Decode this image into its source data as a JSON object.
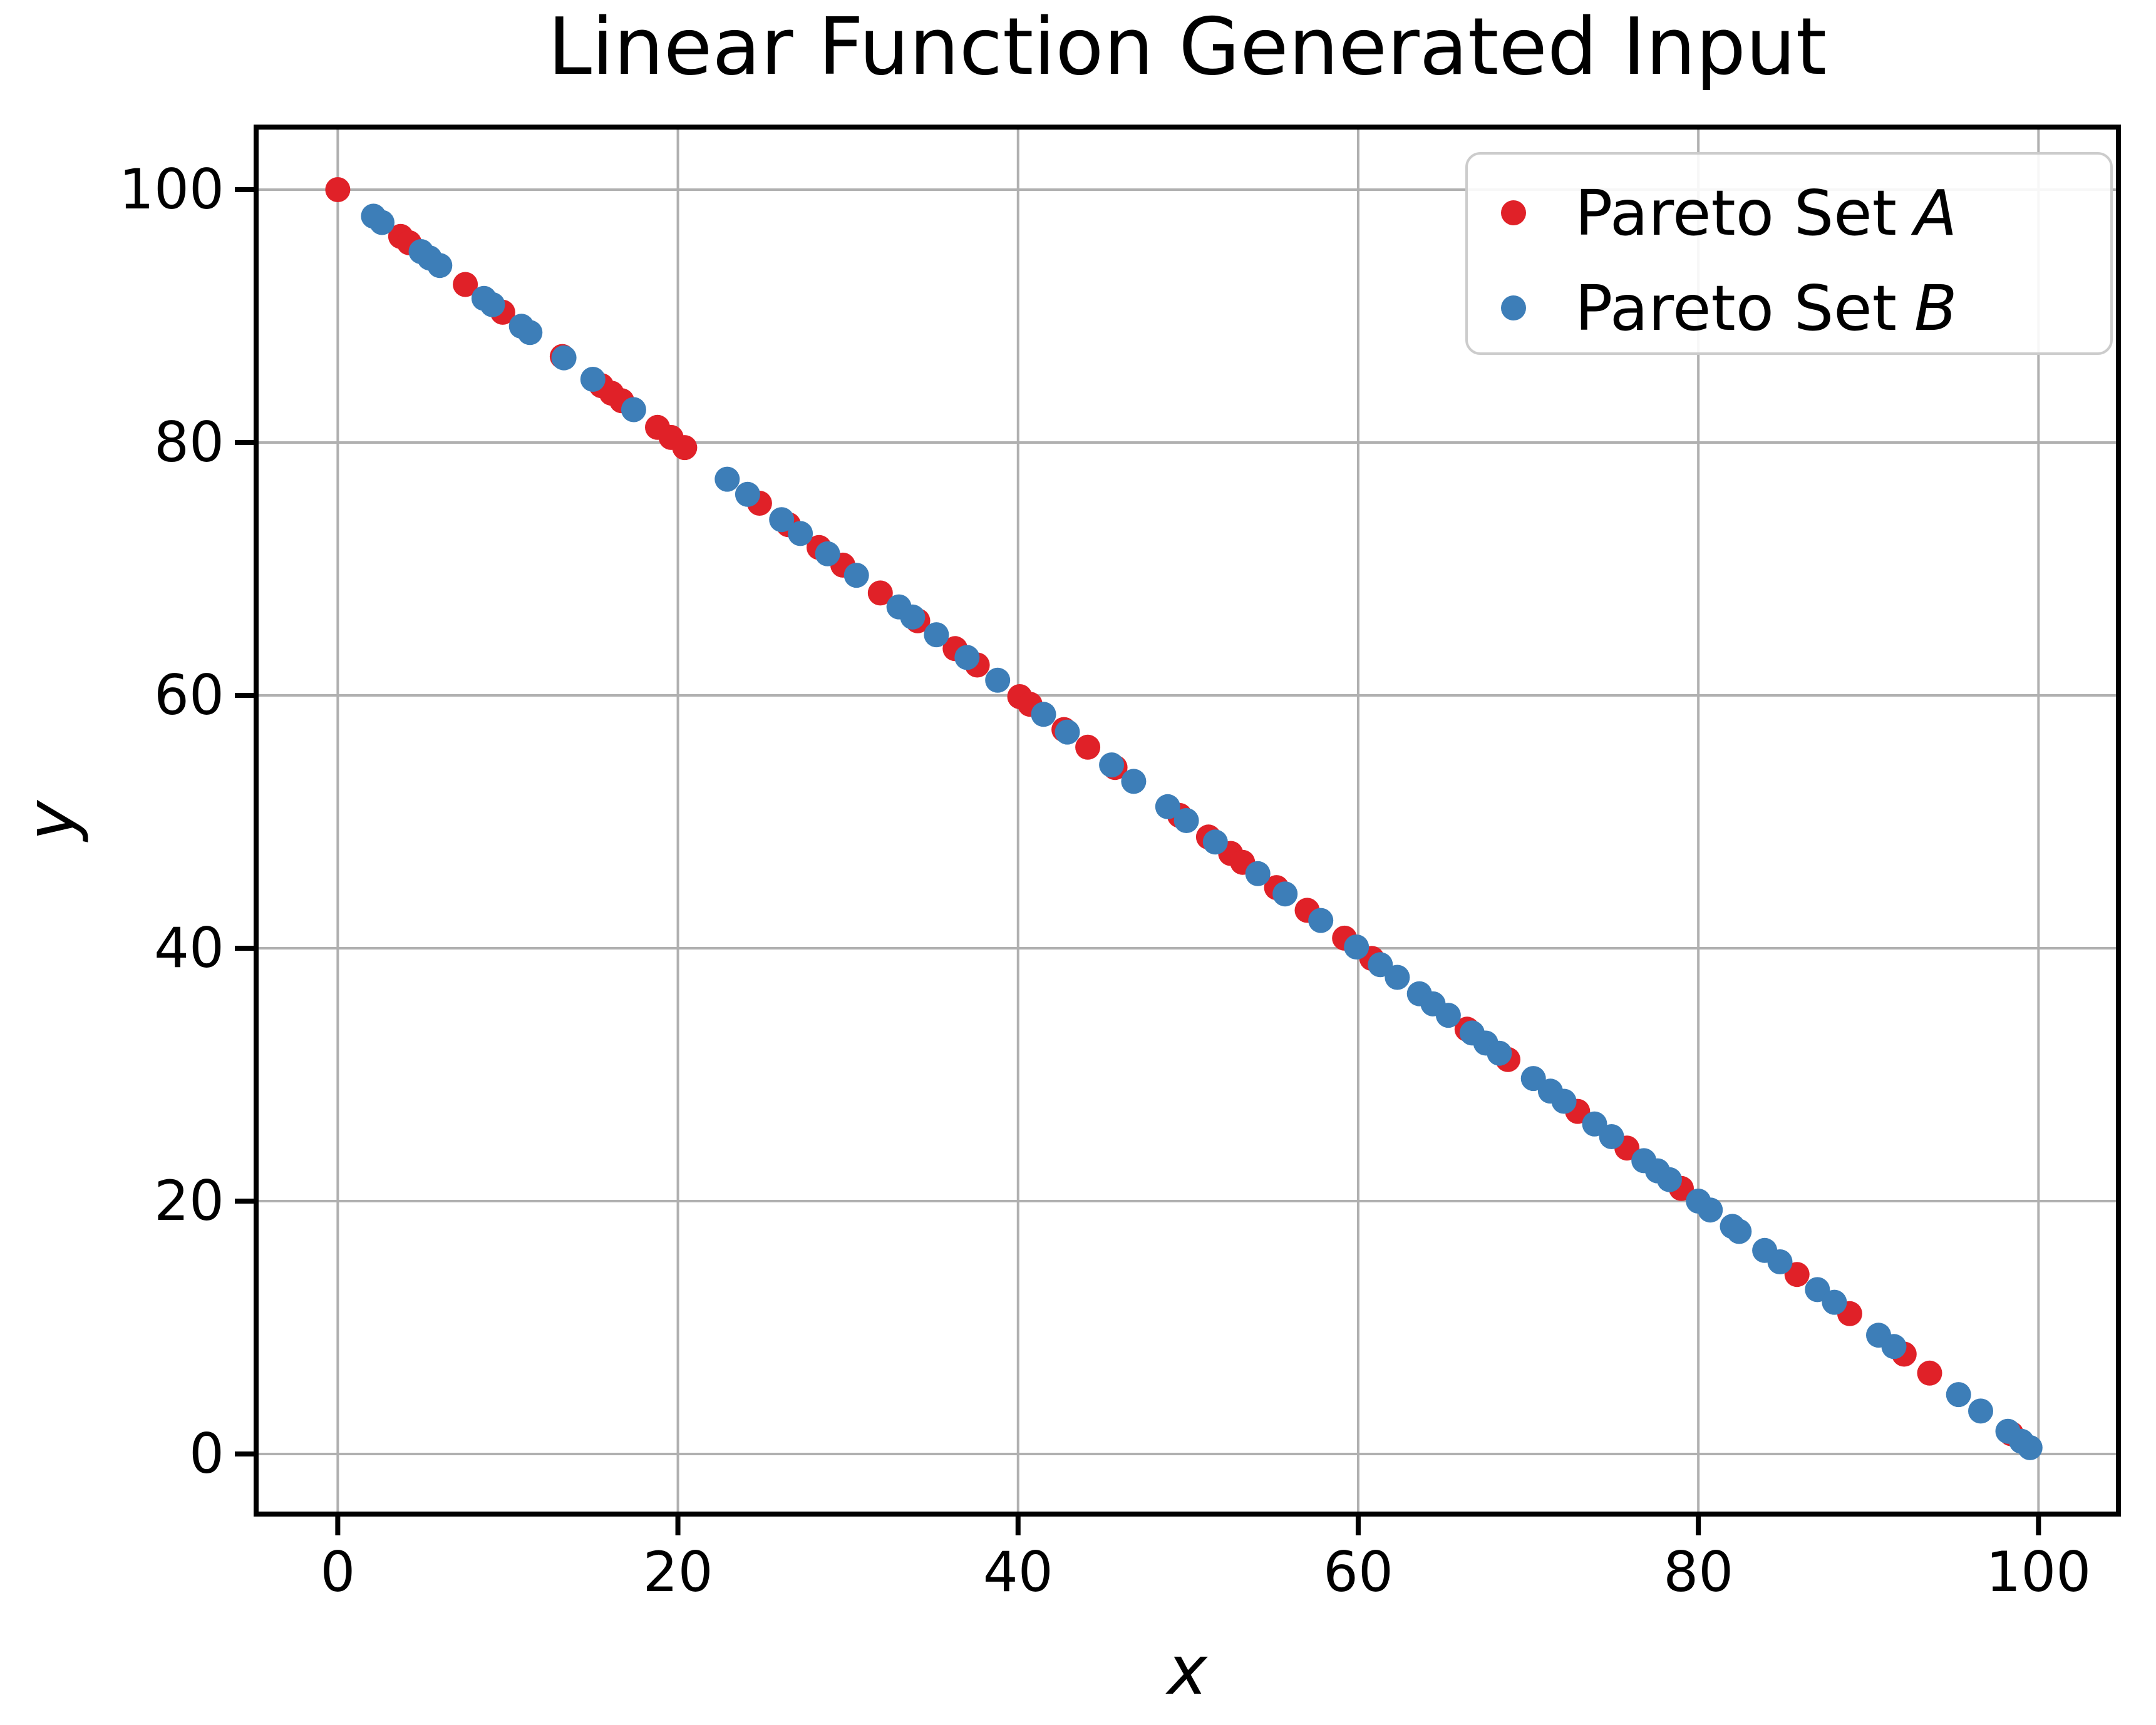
{
  "title": "Linear Function Generated Input",
  "axes": {
    "xlabel": "x",
    "ylabel": "y",
    "xticks": [
      0,
      20,
      40,
      60,
      80,
      100
    ],
    "yticks": [
      0,
      20,
      40,
      60,
      80,
      100
    ],
    "xlim": [
      -4.8,
      104.7
    ],
    "ylim": [
      -4.75,
      104.95
    ],
    "grid": true,
    "grid_color": "#b0b0b0",
    "spine_color": "#000000"
  },
  "legend": {
    "position": "upper right",
    "border_color": "#cccccc",
    "items": [
      {
        "prefix": "Pareto Set",
        "suffix": "A",
        "label": "Pareto Set A",
        "color": "#e02128"
      },
      {
        "prefix": "Pareto Set",
        "suffix": "B",
        "label": "Pareto Set B",
        "color": "#3d7eb8"
      }
    ]
  },
  "chart_data": {
    "type": "scatter",
    "title": "Linear Function Generated Input",
    "xlabel": "x",
    "ylabel": "y",
    "xlim": [
      -4.8,
      104.7
    ],
    "ylim": [
      -4.75,
      104.95
    ],
    "grid": true,
    "legend_position": "upper right",
    "relation": "y = 100 - x",
    "marker_radius_px": 20,
    "series": [
      {
        "name": "Pareto Set A",
        "id": "setA",
        "color": "#e02128",
        "x": [
          0.0,
          3.7,
          4.2,
          7.5,
          9.7,
          13.2,
          15.5,
          16.1,
          16.7,
          18.8,
          19.6,
          20.4,
          24.8,
          26.5,
          28.3,
          29.7,
          31.9,
          34.1,
          36.3,
          37.6,
          40.1,
          40.7,
          42.7,
          44.1,
          45.7,
          49.5,
          51.2,
          52.5,
          53.2,
          55.2,
          57.0,
          59.2,
          60.8,
          66.4,
          68.8,
          72.9,
          75.8,
          79.0,
          85.8,
          88.9,
          92.1,
          93.6,
          98.4
        ],
        "y": [
          100.0,
          96.3,
          95.8,
          92.5,
          90.3,
          86.8,
          84.5,
          83.9,
          83.3,
          81.2,
          80.4,
          79.6,
          75.2,
          73.5,
          71.7,
          70.3,
          68.1,
          65.9,
          63.7,
          62.4,
          59.9,
          59.3,
          57.3,
          55.9,
          54.3,
          50.5,
          48.8,
          47.5,
          46.8,
          44.8,
          43.0,
          40.8,
          39.2,
          33.6,
          31.2,
          27.1,
          24.2,
          21.0,
          14.2,
          11.1,
          7.9,
          6.4,
          1.6
        ]
      },
      {
        "name": "Pareto Set B",
        "id": "setB",
        "color": "#3d7eb8",
        "x": [
          2.1,
          2.6,
          4.9,
          5.4,
          6.0,
          8.6,
          9.1,
          10.8,
          11.3,
          13.3,
          15.0,
          17.4,
          22.9,
          24.1,
          26.1,
          27.2,
          28.8,
          30.5,
          33.0,
          33.8,
          35.2,
          37.0,
          38.8,
          41.5,
          42.9,
          45.5,
          46.8,
          48.8,
          49.9,
          51.6,
          54.1,
          55.7,
          57.8,
          59.9,
          61.3,
          62.3,
          63.6,
          64.4,
          65.3,
          66.7,
          67.5,
          68.3,
          70.3,
          71.3,
          72.1,
          73.9,
          74.9,
          76.8,
          77.6,
          78.3,
          80.0,
          80.7,
          82.0,
          82.4,
          83.9,
          84.8,
          87.0,
          88.0,
          90.6,
          91.5,
          95.3,
          96.6,
          98.2,
          99.0,
          99.5
        ],
        "y": [
          97.9,
          97.4,
          95.1,
          94.6,
          94.0,
          91.4,
          90.9,
          89.2,
          88.7,
          86.7,
          85.0,
          82.6,
          77.1,
          75.9,
          73.9,
          72.8,
          71.2,
          69.5,
          67.0,
          66.2,
          64.8,
          63.0,
          61.2,
          58.5,
          57.1,
          54.5,
          53.2,
          51.2,
          50.1,
          48.4,
          45.9,
          44.3,
          42.2,
          40.1,
          38.7,
          37.7,
          36.4,
          35.6,
          34.7,
          33.3,
          32.5,
          31.7,
          29.7,
          28.7,
          27.9,
          26.1,
          25.1,
          23.2,
          22.4,
          21.7,
          20.0,
          19.3,
          18.0,
          17.6,
          16.1,
          15.2,
          13.0,
          12.0,
          9.4,
          8.5,
          4.7,
          3.4,
          1.8,
          1.0,
          0.5
        ]
      }
    ]
  }
}
